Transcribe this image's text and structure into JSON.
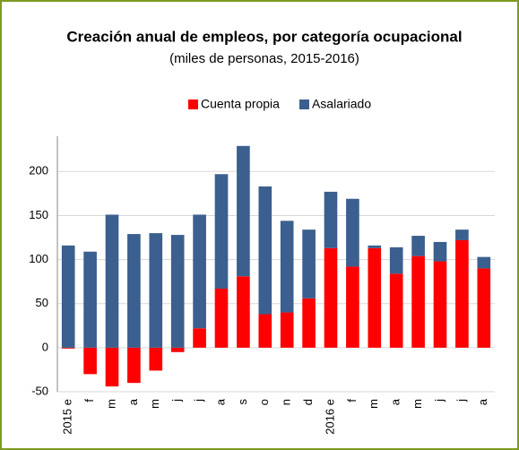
{
  "chart_data": {
    "type": "bar",
    "stacked": true,
    "title": "Creación anual de empleos, por categoría ocupacional",
    "subtitle": "(miles de personas, 2015-2016)",
    "categories": [
      "2015 e",
      "f",
      "m",
      "a",
      "m",
      "j",
      "j",
      "a",
      "s",
      "o",
      "n",
      "d",
      "2016 e",
      "f",
      "m",
      "a",
      "m",
      "j",
      "j",
      "a"
    ],
    "series": [
      {
        "name": "Cuenta propia",
        "color": "#ff0000",
        "values": [
          -1,
          -30,
          -44,
          -40,
          -26,
          -5,
          22,
          67,
          81,
          38,
          40,
          56,
          113,
          92,
          113,
          84,
          104,
          98,
          122,
          90
        ]
      },
      {
        "name": "Asalariado",
        "color": "#3b5f8e",
        "values": [
          116,
          109,
          151,
          129,
          130,
          128,
          129,
          130,
          148,
          145,
          104,
          78,
          64,
          77,
          3,
          30,
          23,
          22,
          12,
          13
        ]
      }
    ],
    "ylim": [
      -50,
      240
    ],
    "yticks": [
      -50,
      0,
      50,
      100,
      150,
      200
    ],
    "grid": true,
    "legend": "top"
  }
}
